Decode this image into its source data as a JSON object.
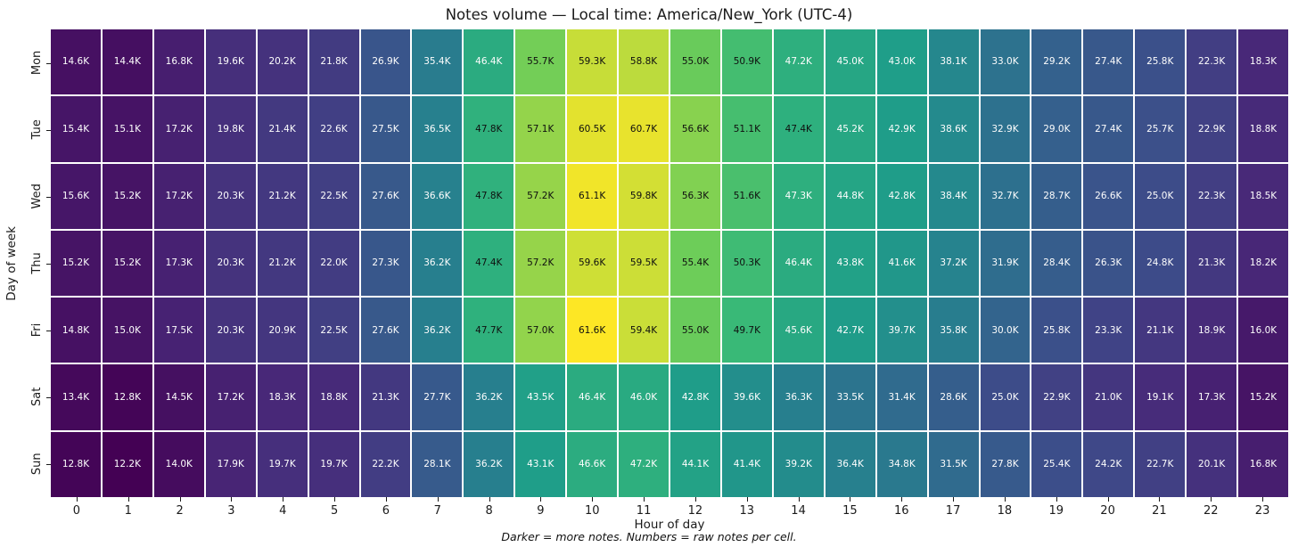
{
  "chart_data": {
    "type": "heatmap",
    "title": "Notes volume — Local time: America/New_York (UTC-4)",
    "xlabel": "Hour of day",
    "ylabel": "Day of week",
    "caption": "Darker = more notes. Numbers = raw notes per cell.",
    "x_ticks": [
      "0",
      "1",
      "2",
      "3",
      "4",
      "5",
      "6",
      "7",
      "8",
      "9",
      "10",
      "11",
      "12",
      "13",
      "14",
      "15",
      "16",
      "17",
      "18",
      "19",
      "20",
      "21",
      "22",
      "23"
    ],
    "y_ticks": [
      "Mon",
      "Tue",
      "Wed",
      "Thu",
      "Fri",
      "Sat",
      "Sun"
    ],
    "unit_suffix": "K",
    "grid": true,
    "legend_position": "none",
    "color_scale": {
      "name": "viridis",
      "vmin": 12.2,
      "vmax": 61.6,
      "dark_hex": "#440154",
      "bright_hex": "#fde725"
    },
    "series": [
      {
        "name": "Mon",
        "values": [
          14.6,
          14.4,
          16.8,
          19.6,
          20.2,
          21.8,
          26.9,
          35.4,
          46.4,
          55.7,
          59.3,
          58.8,
          55.0,
          50.9,
          47.2,
          45.0,
          43.0,
          38.1,
          33.0,
          29.2,
          27.4,
          25.8,
          22.3,
          18.3
        ]
      },
      {
        "name": "Tue",
        "values": [
          15.4,
          15.1,
          17.2,
          19.8,
          21.4,
          22.6,
          27.5,
          36.5,
          47.8,
          57.1,
          60.5,
          60.7,
          56.6,
          51.1,
          47.4,
          45.2,
          42.9,
          38.6,
          32.9,
          29.0,
          27.4,
          25.7,
          22.9,
          18.8
        ]
      },
      {
        "name": "Wed",
        "values": [
          15.6,
          15.2,
          17.2,
          20.3,
          21.2,
          22.5,
          27.6,
          36.6,
          47.8,
          57.2,
          61.1,
          59.8,
          56.3,
          51.6,
          47.3,
          44.8,
          42.8,
          38.4,
          32.7,
          28.7,
          26.6,
          25.0,
          22.3,
          18.5
        ]
      },
      {
        "name": "Thu",
        "values": [
          15.2,
          15.2,
          17.3,
          20.3,
          21.2,
          22.0,
          27.3,
          36.2,
          47.4,
          57.2,
          59.6,
          59.5,
          55.4,
          50.3,
          46.4,
          43.8,
          41.6,
          37.2,
          31.9,
          28.4,
          26.3,
          24.8,
          21.3,
          18.2
        ]
      },
      {
        "name": "Fri",
        "values": [
          14.8,
          15.0,
          17.5,
          20.3,
          20.9,
          22.5,
          27.6,
          36.2,
          47.7,
          57.0,
          61.6,
          59.4,
          55.0,
          49.7,
          45.6,
          42.7,
          39.7,
          35.8,
          30.0,
          25.8,
          23.3,
          21.1,
          18.9,
          16.0
        ]
      },
      {
        "name": "Sat",
        "values": [
          13.4,
          12.8,
          14.5,
          17.2,
          18.3,
          18.8,
          21.3,
          27.7,
          36.2,
          43.5,
          46.4,
          46.0,
          42.8,
          39.6,
          36.3,
          33.5,
          31.4,
          28.6,
          25.0,
          22.9,
          21.0,
          19.1,
          17.3,
          15.2
        ]
      },
      {
        "name": "Sun",
        "values": [
          12.8,
          12.2,
          14.0,
          17.9,
          19.7,
          19.7,
          22.2,
          28.1,
          36.2,
          43.1,
          46.6,
          47.2,
          44.1,
          41.4,
          39.2,
          36.4,
          34.8,
          31.5,
          27.8,
          25.4,
          24.2,
          22.7,
          20.1,
          16.8
        ]
      }
    ]
  }
}
